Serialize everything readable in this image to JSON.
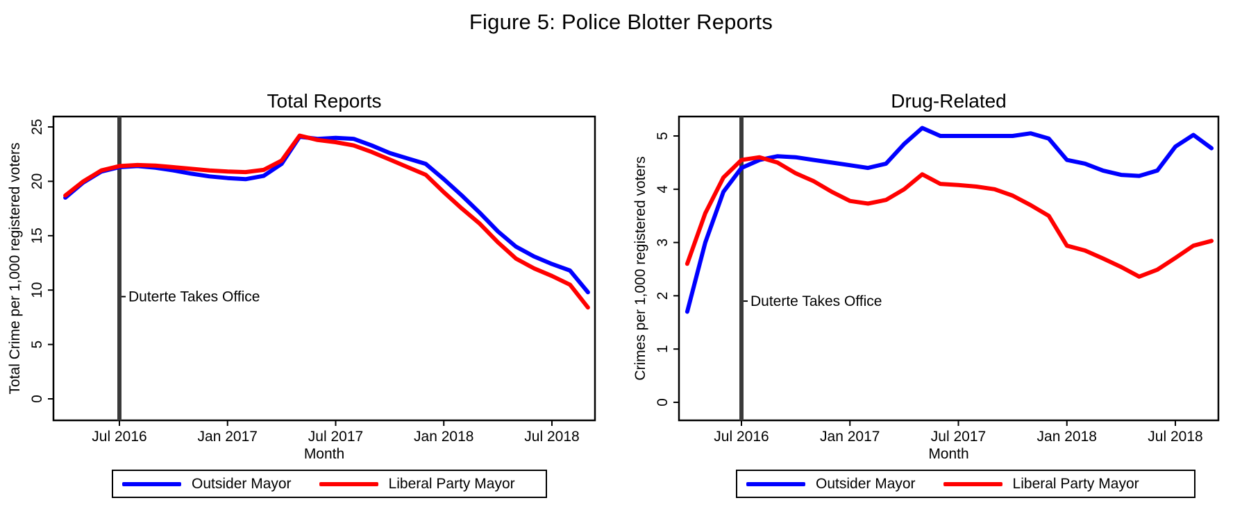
{
  "figure_title": "Figure 5: Police Blotter Reports",
  "legend": {
    "items": [
      {
        "label": "Outsider Mayor",
        "color": "#0000ff"
      },
      {
        "label": "Liberal Party Mayor",
        "color": "#ff0000"
      }
    ]
  },
  "event_annotation": "Duterte Takes Office",
  "x_axis": {
    "label": "Month",
    "tick_labels": [
      "Jul 2016",
      "Jan 2017",
      "Jul 2017",
      "Jan 2018",
      "Jul 2018"
    ]
  },
  "chart_data": [
    {
      "type": "line",
      "title": "Total Reports",
      "ylabel": "Total Crime per 1,000 registered voters",
      "xlabel": "Month",
      "ylim": [
        0,
        25
      ],
      "yticks": [
        0,
        5,
        10,
        15,
        20,
        25
      ],
      "xtick_labels": [
        "Jul 2016",
        "Jan 2017",
        "Jul 2017",
        "Jan 2018",
        "Jul 2018"
      ],
      "legend_position": "bottom",
      "grid": false,
      "x": [
        "Apr 2016",
        "May 2016",
        "Jun 2016",
        "Jul 2016",
        "Aug 2016",
        "Sep 2016",
        "Oct 2016",
        "Nov 2016",
        "Dec 2016",
        "Jan 2017",
        "Feb 2017",
        "Mar 2017",
        "Apr 2017",
        "May 2017",
        "Jun 2017",
        "Jul 2017",
        "Aug 2017",
        "Sep 2017",
        "Oct 2017",
        "Nov 2017",
        "Dec 2017",
        "Jan 2018",
        "Feb 2018",
        "Mar 2018",
        "Apr 2018",
        "May 2018",
        "Jun 2018",
        "Jul 2018",
        "Aug 2018",
        "Sep 2018"
      ],
      "series": [
        {
          "name": "Outsider Mayor",
          "color": "#0000ff",
          "values": [
            18.5,
            19.9,
            20.9,
            21.3,
            21.4,
            21.25,
            21.0,
            20.7,
            20.45,
            20.3,
            20.2,
            20.5,
            21.6,
            24.1,
            23.9,
            24.0,
            23.9,
            23.3,
            22.6,
            22.1,
            21.6,
            20.2,
            18.7,
            17.1,
            15.4,
            14.0,
            13.1,
            12.4,
            11.8,
            9.8
          ]
        },
        {
          "name": "Liberal Party Mayor",
          "color": "#ff0000",
          "values": [
            18.7,
            20.0,
            21.0,
            21.4,
            21.5,
            21.45,
            21.3,
            21.15,
            21.0,
            20.9,
            20.85,
            21.05,
            21.9,
            24.2,
            23.8,
            23.6,
            23.3,
            22.7,
            22.0,
            21.3,
            20.6,
            19.0,
            17.5,
            16.1,
            14.4,
            12.9,
            12.0,
            11.3,
            10.5,
            8.4
          ]
        }
      ],
      "event_line": {
        "x": "Jul 2016",
        "label": "Duterte Takes Office",
        "label_y": 9.4,
        "color": "#3a3a3a"
      }
    },
    {
      "type": "line",
      "title": "Drug-Related",
      "ylabel": "Crimes per 1,000 registered voters",
      "xlabel": "Month",
      "ylim": [
        0,
        5
      ],
      "yticks": [
        0,
        1,
        2,
        3,
        4,
        5
      ],
      "xtick_labels": [
        "Jul 2016",
        "Jan 2017",
        "Jul 2017",
        "Jan 2018",
        "Jul 2018"
      ],
      "legend_position": "bottom",
      "grid": false,
      "x": [
        "Apr 2016",
        "May 2016",
        "Jun 2016",
        "Jul 2016",
        "Aug 2016",
        "Sep 2016",
        "Oct 2016",
        "Nov 2016",
        "Dec 2016",
        "Jan 2017",
        "Feb 2017",
        "Mar 2017",
        "Apr 2017",
        "May 2017",
        "Jun 2017",
        "Jul 2017",
        "Aug 2017",
        "Sep 2017",
        "Oct 2017",
        "Nov 2017",
        "Dec 2017",
        "Jan 2018",
        "Feb 2018",
        "Mar 2018",
        "Apr 2018",
        "May 2018",
        "Jun 2018",
        "Jul 2018",
        "Aug 2018",
        "Sep 2018"
      ],
      "series": [
        {
          "name": "Outsider Mayor",
          "color": "#0000ff",
          "values": [
            1.7,
            3.0,
            3.95,
            4.4,
            4.55,
            4.62,
            4.6,
            4.55,
            4.5,
            4.45,
            4.4,
            4.48,
            4.85,
            5.15,
            5.0,
            5.0,
            5.0,
            5.0,
            5.0,
            5.05,
            4.95,
            4.55,
            4.48,
            4.35,
            4.27,
            4.25,
            4.35,
            4.8,
            5.02,
            4.77
          ]
        },
        {
          "name": "Liberal Party Mayor",
          "color": "#ff0000",
          "values": [
            2.6,
            3.55,
            4.22,
            4.55,
            4.6,
            4.5,
            4.3,
            4.15,
            3.95,
            3.78,
            3.73,
            3.8,
            4.0,
            4.28,
            4.1,
            4.08,
            4.05,
            4.0,
            3.88,
            3.7,
            3.5,
            2.94,
            2.85,
            2.7,
            2.54,
            2.36,
            2.49,
            2.71,
            2.94,
            3.03
          ]
        }
      ],
      "event_line": {
        "x": "Jul 2016",
        "label": "Duterte Takes Office",
        "label_y": 1.9,
        "color": "#3a3a3a"
      }
    }
  ]
}
